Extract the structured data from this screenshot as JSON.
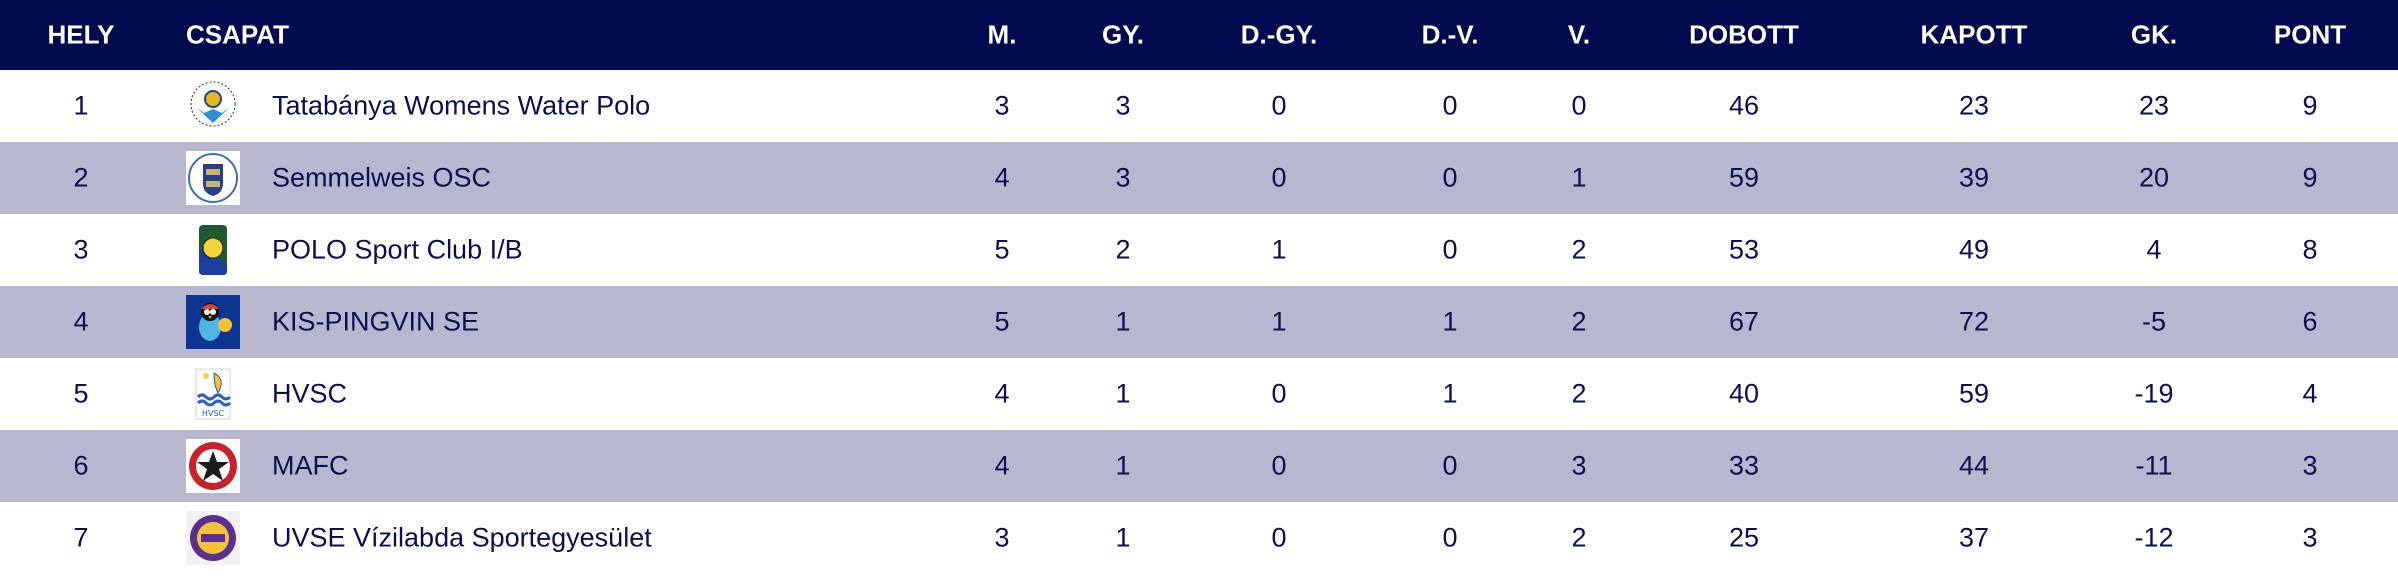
{
  "colors": {
    "header_bg": "#020a50",
    "header_text": "#ffffff",
    "alt_row_bg": "#b8b7d0",
    "text": "#0b0f50"
  },
  "headers": {
    "hely": "HELY",
    "csapat": "CSAPAT",
    "m": "M.",
    "gy": "GY.",
    "dgy": "D.-GY.",
    "dv": "D.-V.",
    "v": "V.",
    "dobott": "DOBOTT",
    "kapott": "KAPOTT",
    "gk": "GK.",
    "pont": "PONT"
  },
  "rows": [
    {
      "hely": "1",
      "team": "Tatabánya Womens Water Polo",
      "logo": "tatabanya-crest",
      "m": "3",
      "gy": "3",
      "dgy": "0",
      "dv": "0",
      "v": "0",
      "dobott": "46",
      "kapott": "23",
      "gk": "23",
      "pont": "9"
    },
    {
      "hely": "2",
      "team": "Semmelweis OSC",
      "logo": "semmelweis-crest",
      "m": "4",
      "gy": "3",
      "dgy": "0",
      "dv": "0",
      "v": "1",
      "dobott": "59",
      "kapott": "39",
      "gk": "20",
      "pont": "9"
    },
    {
      "hely": "3",
      "team": "POLO Sport Club I/B",
      "logo": "polo-ball-crest",
      "m": "5",
      "gy": "2",
      "dgy": "1",
      "dv": "0",
      "v": "2",
      "dobott": "53",
      "kapott": "49",
      "gk": "4",
      "pont": "8"
    },
    {
      "hely": "4",
      "team": "KIS-PINGVIN SE",
      "logo": "penguin-crest",
      "m": "5",
      "gy": "1",
      "dgy": "1",
      "dv": "1",
      "v": "2",
      "dobott": "67",
      "kapott": "72",
      "gk": "-5",
      "pont": "6"
    },
    {
      "hely": "5",
      "team": "HVSC",
      "logo": "hvsc-waves-crest",
      "m": "4",
      "gy": "1",
      "dgy": "0",
      "dv": "1",
      "v": "2",
      "dobott": "40",
      "kapott": "59",
      "gk": "-19",
      "pont": "4"
    },
    {
      "hely": "6",
      "team": "MAFC",
      "logo": "mafc-star-crest",
      "m": "4",
      "gy": "1",
      "dgy": "0",
      "dv": "0",
      "v": "3",
      "dobott": "33",
      "kapott": "44",
      "gk": "-11",
      "pont": "3"
    },
    {
      "hely": "7",
      "team": "UVSE Vízilabda Sportegyesület",
      "logo": "uvse-crest",
      "m": "3",
      "gy": "1",
      "dgy": "0",
      "dv": "0",
      "v": "2",
      "dobott": "25",
      "kapott": "37",
      "gk": "-12",
      "pont": "3"
    }
  ]
}
